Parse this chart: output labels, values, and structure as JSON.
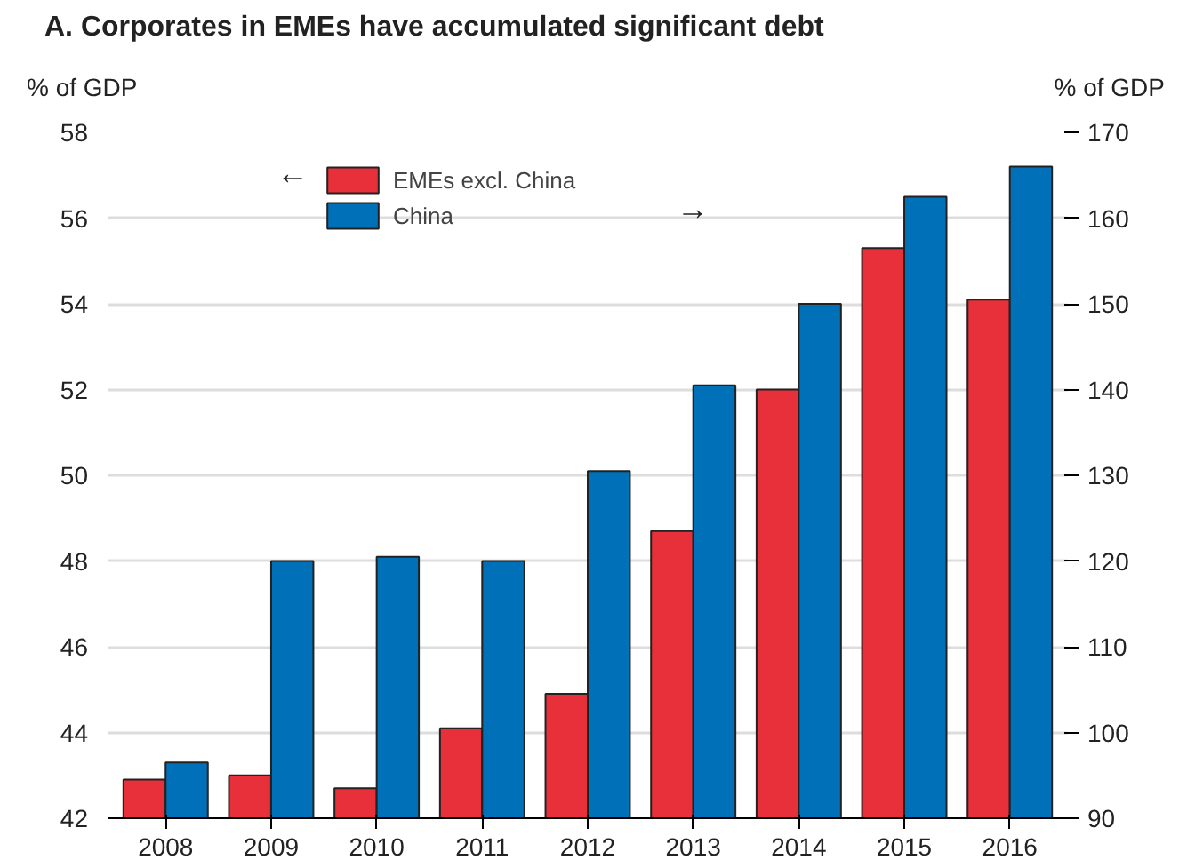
{
  "chart_data": {
    "type": "bar",
    "title": "A. Corporates in EMEs have accumulated significant debt",
    "ylabel": "% of GDP",
    "y2label": "% of GDP",
    "categories": [
      "2008",
      "2009",
      "2010",
      "2011",
      "2012",
      "2013",
      "2014",
      "2015",
      "2016"
    ],
    "series": [
      {
        "name": "EMEs excl. China",
        "color": "#e8303a",
        "values": [
          42.9,
          43.0,
          42.7,
          44.1,
          44.9,
          48.7,
          52.0,
          55.3,
          54.1
        ]
      },
      {
        "name": "China",
        "color": "#0070b8",
        "axis": "y2",
        "values": [
          96.5,
          120,
          120.5,
          120,
          130.5,
          140.5,
          150,
          162.5,
          166
        ]
      }
    ],
    "ylim": [
      42,
      58
    ],
    "yticks": [
      42,
      44,
      46,
      48,
      50,
      52,
      54,
      56,
      58
    ],
    "y2lim": [
      90,
      170
    ],
    "y2ticks": [
      90,
      100,
      110,
      120,
      130,
      140,
      150,
      160,
      170
    ],
    "annotations": [
      "←",
      "→"
    ],
    "grid": "y",
    "legend": "top left"
  }
}
